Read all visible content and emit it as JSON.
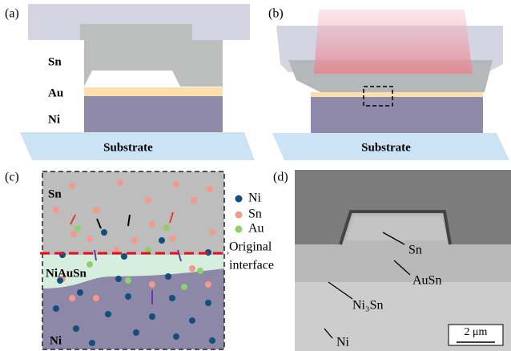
{
  "panels": [
    {
      "label": "(a)",
      "layers": [
        "Sn",
        "Au",
        "Ni"
      ],
      "substrate": "Substrate"
    },
    {
      "label": "(b)",
      "substrate": "Substrate"
    },
    {
      "label": "(c)",
      "regions": [
        "Sn",
        "NiAuSn",
        "Ni"
      ],
      "legend": [
        "Ni",
        "Sn",
        "Au"
      ],
      "interface": [
        "Original",
        "interface"
      ]
    },
    {
      "label": "(d)",
      "annotations": [
        "Sn",
        "AuSn",
        "Ni₃Sn",
        "Ni"
      ],
      "scale_bar": "2 μm"
    }
  ]
}
